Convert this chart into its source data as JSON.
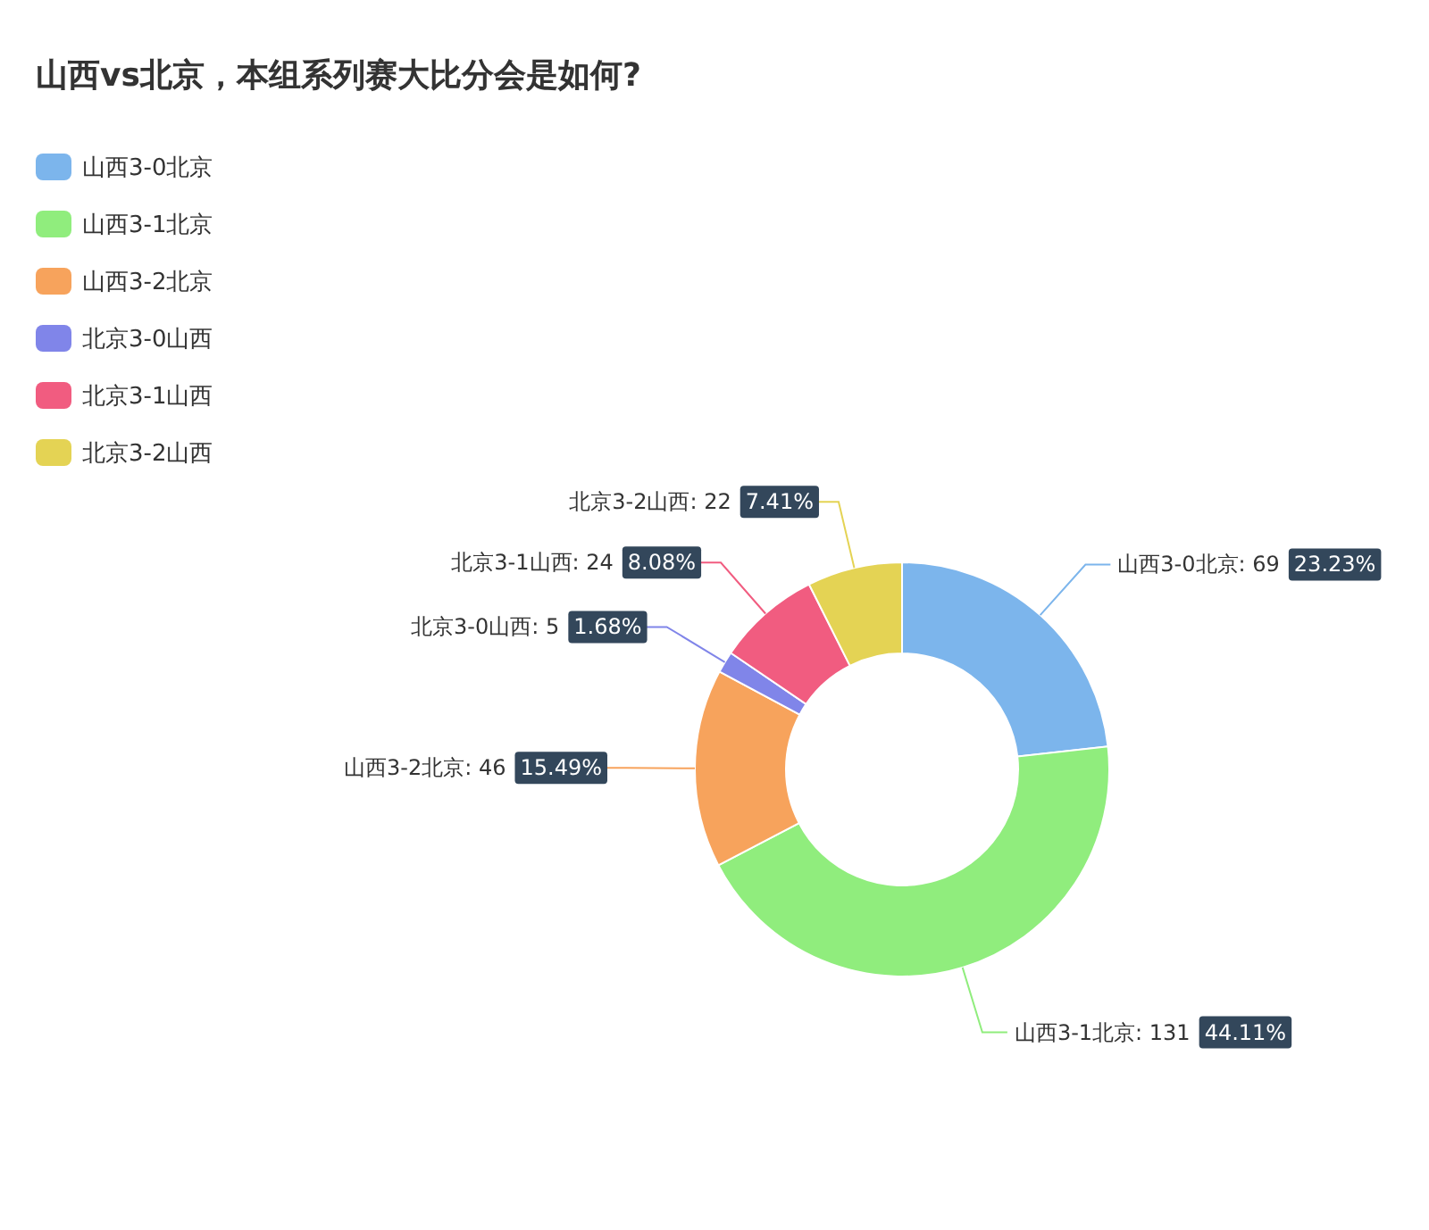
{
  "chart_data": {
    "type": "donut",
    "title": "山西vs北京，本组系列赛大比分会是如何?",
    "categories": [
      "山西3-0北京",
      "山西3-1北京",
      "山西3-2北京",
      "北京3-0山西",
      "北京3-1山西",
      "北京3-2山西"
    ],
    "values": [
      69,
      131,
      46,
      5,
      24,
      22
    ],
    "colors": [
      "#7cb5ec",
      "#90ed7d",
      "#f7a35c",
      "#8085e9",
      "#f15c80",
      "#e4d354"
    ],
    "value_labels": [
      ": 69 23.23%",
      ": 131 44.11%",
      ": 46 15.49%",
      ": 5 1.68%",
      ": 24 8.08%",
      ": 22 7.41%"
    ],
    "legend": "top left"
  }
}
